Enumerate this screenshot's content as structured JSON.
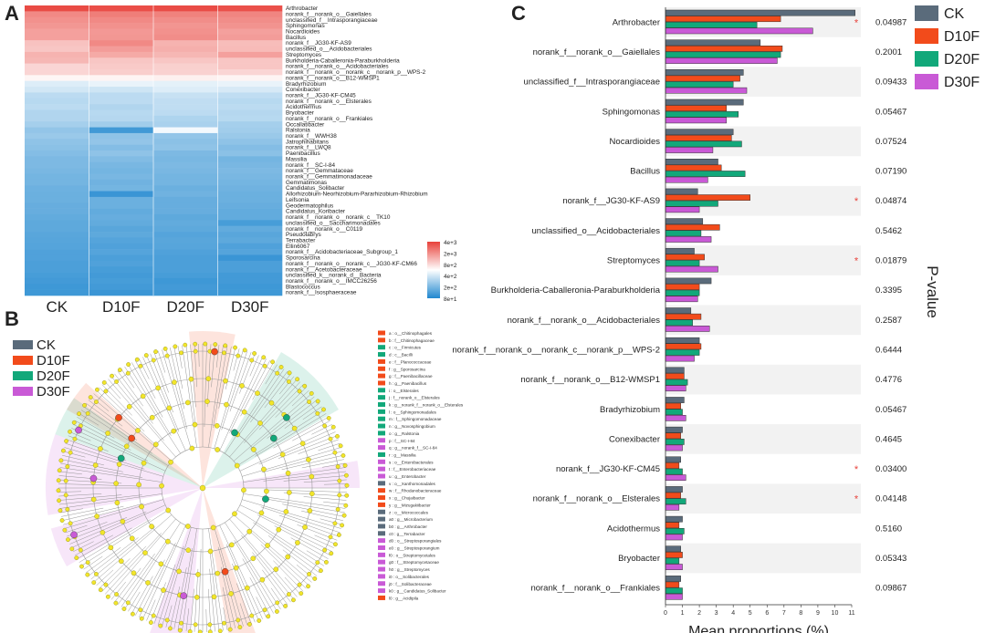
{
  "panels": {
    "a": "A",
    "b": "B",
    "c": "C"
  },
  "colors": {
    "CK": "#5a6b7b",
    "D10F": "#f24b1b",
    "D20F": "#12a87a",
    "D30F": "#c95ad6",
    "heat_high": "#e8413a",
    "heat_mid": "#ffffff",
    "heat_low": "#1f87cf"
  },
  "heatmap": {
    "samples": [
      "CK",
      "D10F",
      "D20F",
      "D30F"
    ],
    "colorbar_ticks": [
      "4e+3",
      "2e+3",
      "8e+2",
      "4e+2",
      "2e+2",
      "8e+1"
    ],
    "taxa": [
      "Arthrobacter",
      "norank_f__norank_o__Gaiellales",
      "unclassified_f__Intrasporangiaceae",
      "Sphingomonas",
      "Nocardioides",
      "Bacillus",
      "norank_f__JG30-KF-AS9",
      "unclassified_o__Acidobacteriales",
      "Streptomyces",
      "Burkholderia-Caballeronia-Paraburkholderia",
      "norank_f__norank_o__Acidobacteriales",
      "norank_f__norank_o__norank_c__norank_p__WPS-2",
      "norank_f__norank_o__B12-WMSP1",
      "Bradyrhizobium",
      "Conexibacter",
      "norank_f__JG30-KF-CM45",
      "norank_f__norank_o__Elsterales",
      "Acidothermus",
      "Bryobacter",
      "norank_f__norank_o__Frankiales",
      "Occallatibacter",
      "Ralstonia",
      "norank_f__WWH38",
      "Jatrophihabitans",
      "norank_f__LWQ8",
      "Paenibacillus",
      "Massilia",
      "norank_f__SC-I-84",
      "norank_f__Gemmataceae",
      "norank_f__Gemmatimonadaceae",
      "Gemmatimonas",
      "Candidatus_Solibacter",
      "Allorhizobium-Neorhizobium-Pararhizobium-Rhizobium",
      "Leifsonia",
      "Geodermatophilus",
      "Candidatus_Koribacter",
      "norank_f__norank_o__norank_c__TK10",
      "unclassified_o__Saccharimonadales",
      "norank_f__norank_o__C0119",
      "Pseudolabrys",
      "Terrabacter",
      "Ellin6067",
      "norank_f__Acidobacteriaceae_Subgroup_1",
      "Sporosarcina",
      "norank_f__norank_o__norank_c__JG30-KF-CM66",
      "norank_f__Acetobacteraceae",
      "unclassified_k__norank_d__Bacteria",
      "norank_f__norank_o__IMCC26256",
      "Blastococcus",
      "norank_f__Isosphaeraceae"
    ],
    "values": [
      [
        0.95,
        0.93,
        0.94,
        0.92
      ],
      [
        0.62,
        0.68,
        0.66,
        0.64
      ],
      [
        0.58,
        0.62,
        0.6,
        0.6
      ],
      [
        0.55,
        0.58,
        0.56,
        0.57
      ],
      [
        0.5,
        0.54,
        0.58,
        0.5
      ],
      [
        0.5,
        0.55,
        0.6,
        0.52
      ],
      [
        0.32,
        0.62,
        0.4,
        0.35
      ],
      [
        0.3,
        0.52,
        0.42,
        0.36
      ],
      [
        0.4,
        0.45,
        0.38,
        0.5
      ],
      [
        0.38,
        0.3,
        0.3,
        0.3
      ],
      [
        0.22,
        0.28,
        0.25,
        0.3
      ],
      [
        0.22,
        0.26,
        0.24,
        0.22
      ],
      [
        0.05,
        0.06,
        0.08,
        0.06
      ],
      [
        -0.15,
        -0.1,
        -0.12,
        -0.1
      ],
      [
        -0.2,
        -0.22,
        -0.15,
        -0.18
      ],
      [
        -0.3,
        -0.3,
        -0.25,
        -0.28
      ],
      [
        -0.32,
        -0.3,
        -0.28,
        -0.32
      ],
      [
        -0.3,
        -0.35,
        -0.28,
        -0.3
      ],
      [
        -0.35,
        -0.32,
        -0.3,
        -0.33
      ],
      [
        -0.35,
        -0.33,
        -0.36,
        -0.32
      ],
      [
        -0.4,
        -0.42,
        -0.38,
        -0.4
      ],
      [
        -0.48,
        -0.85,
        -0.05,
        -0.42
      ],
      [
        -0.45,
        -0.5,
        -0.48,
        -0.45
      ],
      [
        -0.5,
        -0.48,
        -0.52,
        -0.5
      ],
      [
        -0.52,
        -0.55,
        -0.5,
        -0.55
      ],
      [
        -0.55,
        -0.5,
        -0.58,
        -0.52
      ],
      [
        -0.58,
        -0.56,
        -0.6,
        -0.62
      ],
      [
        -0.58,
        -0.6,
        -0.58,
        -0.6
      ],
      [
        -0.6,
        -0.62,
        -0.6,
        -0.58
      ],
      [
        -0.62,
        -0.6,
        -0.62,
        -0.6
      ],
      [
        -0.62,
        -0.64,
        -0.62,
        -0.62
      ],
      [
        -0.65,
        -0.62,
        -0.66,
        -0.64
      ],
      [
        -0.66,
        -0.88,
        -0.64,
        -0.66
      ],
      [
        -0.66,
        -0.66,
        -0.68,
        -0.66
      ],
      [
        -0.68,
        -0.66,
        -0.68,
        -0.68
      ],
      [
        -0.68,
        -0.7,
        -0.68,
        -0.7
      ],
      [
        -0.7,
        -0.68,
        -0.72,
        -0.7
      ],
      [
        -0.72,
        -0.7,
        -0.7,
        -0.82
      ],
      [
        -0.72,
        -0.74,
        -0.72,
        -0.7
      ],
      [
        -0.74,
        -0.72,
        -0.76,
        -0.74
      ],
      [
        -0.75,
        -0.76,
        -0.74,
        -0.72
      ],
      [
        -0.76,
        -0.78,
        -0.75,
        -0.78
      ],
      [
        -0.78,
        -0.76,
        -0.78,
        -0.76
      ],
      [
        -0.78,
        -0.8,
        -0.8,
        -0.88
      ],
      [
        -0.8,
        -0.78,
        -0.8,
        -0.8
      ],
      [
        -0.8,
        -0.82,
        -0.8,
        -0.8
      ],
      [
        -0.82,
        -0.84,
        -0.82,
        -0.84
      ],
      [
        -0.84,
        -0.82,
        -0.86,
        -0.84
      ],
      [
        -0.86,
        -0.84,
        -0.84,
        -0.86
      ],
      [
        -0.86,
        -0.88,
        -0.86,
        -0.86
      ]
    ]
  },
  "cladogram": {
    "legend": [
      "CK",
      "D10F",
      "D20F",
      "D30F"
    ],
    "clade_labels": [
      "a : o__Chitinophagales",
      "b : f__Chitinophagaceae",
      "c : o__Firmicutes",
      "d : c__Bacilli",
      "e : f__Planococcaceae",
      "f : g__Sporosarcina",
      "g : f__Paenibacillaceae",
      "h : g__Paenibacillus",
      "i : o__Elsterales",
      "j : f__norank_o__Elsterales",
      "k : g__norank_f__norank_o__Elsterales",
      "l : o__Sphingomonadales",
      "m : f__Sphingomonadaceae",
      "n : g__Novosphingobium",
      "o : g__Ralstonia",
      "p : f__SC-I-84",
      "q : g__norank_f__SC-I-84",
      "r : g__Massilia",
      "s : o__Enterobacterales",
      "t : f__Enterobacteriaceae",
      "u : g__Enterobacter",
      "v : o__Xanthomonadales",
      "w : f__Rhodanobacteraceae",
      "x : g__Chujaibacter",
      "y : g__Mizugakiibacter",
      "z : o__Micrococcales",
      "a0 : g__Microbacterium",
      "b0 : g__Arthrobacter",
      "c0 : g__Terrabacter",
      "d0 : o__Streptosporangiales",
      "e0 : g__Streptosporangium",
      "f0 : o__Streptomycetales",
      "g0 : f__Streptomycetaceae",
      "h0 : g__Streptomyces",
      "i0 : o__Solibacterales",
      "j0 : f__Solibacteraceae",
      "k0 : g__Candidatus_Solibacter",
      "l0 : g__Acidipila"
    ],
    "clade_groups": [
      "D10F",
      "D10F",
      "D20F",
      "D20F",
      "D10F",
      "D10F",
      "D10F",
      "D10F",
      "D20F",
      "D20F",
      "D20F",
      "D20F",
      "D20F",
      "D20F",
      "D20F",
      "D30F",
      "D30F",
      "D20F",
      "D30F",
      "D30F",
      "D30F",
      "CK",
      "D10F",
      "D10F",
      "D10F",
      "CK",
      "CK",
      "CK",
      "CK",
      "D30F",
      "D30F",
      "D30F",
      "D30F",
      "D30F",
      "D30F",
      "D30F",
      "D30F",
      "D10F"
    ]
  },
  "chart_data": [
    {
      "type": "heatmap",
      "title": "",
      "x": [
        "CK",
        "D10F",
        "D20F",
        "D30F"
      ],
      "colorbar": [
        "4e+3",
        "2e+3",
        "8e+2",
        "4e+2",
        "2e+2",
        "8e+1"
      ]
    },
    {
      "type": "bar",
      "orientation": "horizontal",
      "xlabel": "Mean proportions (%)",
      "ylabel": "P-value",
      "xlim": [
        0,
        11
      ],
      "xticks": [
        "0",
        "1",
        "2",
        "3",
        "4",
        "5",
        "6",
        "7",
        "8",
        "9",
        "10",
        "11"
      ],
      "categories": [
        "Arthrobacter",
        "norank_f__norank_o__Gaiellales",
        "unclassified_f__Intrasporangiaceae",
        "Sphingomonas",
        "Nocardioides",
        "Bacillus",
        "norank_f__JG30-KF-AS9",
        "unclassified_o__Acidobacteriales",
        "Streptomyces",
        "Burkholderia-Caballeronia-Paraburkholderia",
        "norank_f__norank_o__Acidobacteriales",
        "norank_f__norank_o__norank_c__norank_p__WPS-2",
        "norank_f__norank_o__B12-WMSP1",
        "Bradyrhizobium",
        "Conexibacter",
        "norank_f__JG30-KF-CM45",
        "norank_f__norank_o__Elsterales",
        "Acidothermus",
        "Bryobacter",
        "norank_f__norank_o__Frankiales"
      ],
      "p_values": [
        "0.04987",
        "0.2001",
        "0.09433",
        "0.05467",
        "0.07524",
        "0.07190",
        "0.04874",
        "0.5462",
        "0.01879",
        "0.3395",
        "0.2587",
        "0.6444",
        "0.4776",
        "0.05467",
        "0.4645",
        "0.03400",
        "0.04148",
        "0.5160",
        "0.05343",
        "0.09867"
      ],
      "significant": [
        true,
        false,
        false,
        false,
        false,
        false,
        true,
        false,
        true,
        false,
        false,
        false,
        false,
        false,
        false,
        true,
        true,
        false,
        false,
        false
      ],
      "significance_mark": "*",
      "series": [
        {
          "name": "CK",
          "values": [
            11.2,
            5.6,
            4.6,
            4.6,
            4.0,
            3.1,
            1.9,
            2.2,
            1.7,
            2.7,
            1.5,
            2.0,
            1.1,
            1.1,
            1.0,
            0.9,
            1.0,
            1.0,
            0.9,
            0.9
          ]
        },
        {
          "name": "D10F",
          "values": [
            6.8,
            6.9,
            4.4,
            3.6,
            3.9,
            3.3,
            5.0,
            3.2,
            2.3,
            2.0,
            2.1,
            2.1,
            1.1,
            0.9,
            0.9,
            0.8,
            0.9,
            0.8,
            1.0,
            0.8
          ]
        },
        {
          "name": "D20F",
          "values": [
            5.4,
            6.8,
            4.0,
            4.3,
            4.5,
            4.7,
            3.1,
            2.1,
            2.0,
            2.0,
            1.6,
            2.0,
            1.3,
            1.0,
            1.1,
            1.0,
            1.2,
            1.1,
            0.8,
            1.0
          ]
        },
        {
          "name": "D30F",
          "values": [
            8.7,
            6.6,
            4.8,
            3.6,
            2.8,
            2.5,
            2.0,
            2.7,
            3.1,
            1.9,
            2.6,
            1.7,
            1.2,
            1.2,
            1.0,
            1.2,
            0.8,
            1.0,
            1.0,
            1.0
          ]
        }
      ],
      "legend": [
        "CK",
        "D10F",
        "D20F",
        "D30F"
      ]
    }
  ]
}
